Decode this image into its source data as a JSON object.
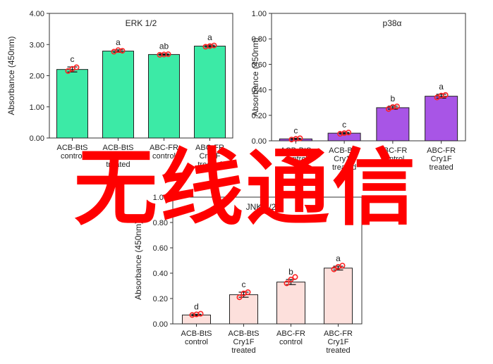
{
  "chart_data": [
    {
      "type": "bar",
      "title": "ERK 1/2",
      "ylabel": "Absorbance (450nm)",
      "ylim": [
        0,
        4
      ],
      "yticks": [
        "0.00",
        "1.00",
        "2.00",
        "3.00",
        "4.00"
      ],
      "categories": [
        [
          "ACB-BtS",
          "control"
        ],
        [
          "ACB-BtS",
          "Cry1F",
          "treated"
        ],
        [
          "ABC-FR",
          "control"
        ],
        [
          "ABC-FR",
          "Cry1F",
          "treated"
        ]
      ],
      "values": [
        2.2,
        2.79,
        2.68,
        2.95
      ],
      "errors": [
        0.08,
        0.04,
        0.02,
        0.03
      ],
      "points": [
        [
          2.15,
          2.27,
          2.22
        ],
        [
          2.77,
          2.8,
          2.82
        ],
        [
          2.67,
          2.69,
          2.68
        ],
        [
          2.93,
          2.97,
          2.95
        ]
      ],
      "letters": [
        "c",
        "a",
        "ab",
        "a"
      ],
      "bar_color": "#3ceaa6"
    },
    {
      "type": "bar",
      "title": "p38α",
      "ylabel": "Absorbance (450nm)",
      "ylim": [
        0,
        1
      ],
      "yticks": [
        "0.00",
        "0.20",
        "0.40",
        "0.60",
        "0.80",
        "1.00"
      ],
      "categories": [
        [
          "ACB-BtS",
          "control"
        ],
        [
          "ACB-BtS",
          "Cry1F",
          "treated"
        ],
        [
          "ABC-FR",
          "control"
        ],
        [
          "ABC-FR",
          "Cry1F",
          "treated"
        ]
      ],
      "values": [
        0.015,
        0.06,
        0.26,
        0.35
      ],
      "errors": [
        0.005,
        0.006,
        0.012,
        0.015
      ],
      "points": [
        [
          0.01,
          0.02,
          0.015
        ],
        [
          0.055,
          0.065,
          0.06
        ],
        [
          0.25,
          0.27,
          0.265
        ],
        [
          0.34,
          0.36,
          0.355
        ]
      ],
      "letters": [
        "c",
        "c",
        "b",
        "a"
      ],
      "bar_color": "#a855e6"
    },
    {
      "type": "bar",
      "title": "JNK 1/2",
      "ylabel": "Absorbance (450nm)",
      "ylim": [
        0,
        1
      ],
      "yticks": [
        "0.00",
        "0.20",
        "0.40",
        "0.60",
        "0.80",
        "1.00"
      ],
      "categories": [
        [
          "ACB-BtS",
          "control"
        ],
        [
          "ACB-BtS",
          "Cry1F",
          "treated"
        ],
        [
          "ABC-FR",
          "control"
        ],
        [
          "ABC-FR",
          "Cry1F",
          "treated"
        ]
      ],
      "values": [
        0.07,
        0.23,
        0.33,
        0.44
      ],
      "errors": [
        0.006,
        0.02,
        0.02,
        0.015
      ],
      "points": [
        [
          0.07,
          0.08,
          0.075
        ],
        [
          0.21,
          0.25,
          0.24
        ],
        [
          0.32,
          0.37,
          0.35
        ],
        [
          0.43,
          0.46,
          0.45
        ]
      ],
      "letters": [
        "d",
        "c",
        "b",
        "a"
      ],
      "bar_color": "#fde0dc"
    }
  ],
  "overlay_text": "无线通信",
  "overlay_color": "#ff0000",
  "point_color": "#ff2222"
}
